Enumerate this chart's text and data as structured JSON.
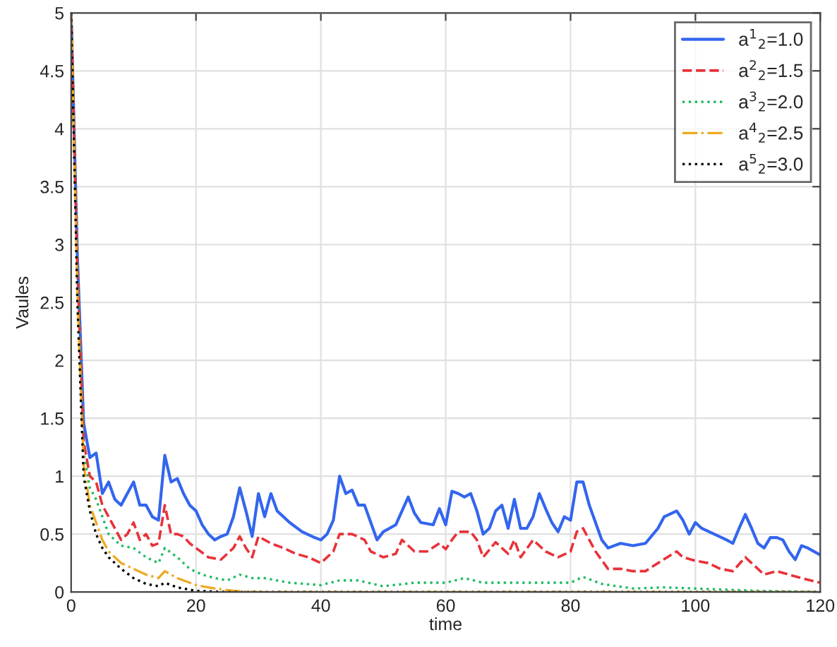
{
  "chart_data": {
    "type": "line",
    "xlabel": "time",
    "ylabel": "Vaules",
    "xlim": [
      0,
      120
    ],
    "ylim": [
      0,
      5
    ],
    "xticks": [
      0,
      20,
      40,
      60,
      80,
      100,
      120
    ],
    "yticks": [
      0,
      0.5,
      1,
      1.5,
      2,
      2.5,
      3,
      3.5,
      4,
      4.5,
      5
    ],
    "grid": true,
    "legend": "top right",
    "marker": "none",
    "series": [
      {
        "name": "a$^{1}$$_{2}$=1.0",
        "color": "#3366ee",
        "line_style": "solid",
        "x": [
          0,
          1,
          2,
          3,
          4,
          5,
          6,
          7,
          8,
          9,
          10,
          11,
          12,
          13,
          14,
          15,
          16,
          17,
          18,
          19,
          20,
          21,
          22,
          23,
          24,
          25,
          26,
          27,
          28,
          29,
          30,
          31,
          32,
          33,
          35,
          37,
          39,
          40,
          41,
          42,
          43,
          44,
          45,
          46,
          47,
          48,
          49,
          50,
          52,
          53,
          54,
          55,
          56,
          58,
          59,
          60,
          61,
          62,
          63,
          64,
          65,
          66,
          67,
          68,
          69,
          70,
          71,
          72,
          73,
          74,
          75,
          76,
          77,
          78,
          79,
          80,
          81,
          82,
          83,
          84,
          85,
          86,
          88,
          90,
          92,
          94,
          95,
          97,
          98,
          99,
          100,
          101,
          103,
          105,
          106,
          107,
          108,
          109,
          110,
          111,
          112,
          113,
          114,
          115,
          116,
          117,
          118,
          120
        ],
        "values": [
          5,
          2.9,
          1.46,
          1.16,
          1.2,
          0.85,
          0.95,
          0.8,
          0.75,
          0.85,
          0.95,
          0.75,
          0.75,
          0.65,
          0.62,
          1.18,
          0.95,
          0.98,
          0.85,
          0.75,
          0.7,
          0.58,
          0.5,
          0.45,
          0.48,
          0.5,
          0.65,
          0.9,
          0.7,
          0.48,
          0.85,
          0.65,
          0.85,
          0.7,
          0.6,
          0.52,
          0.47,
          0.45,
          0.5,
          0.62,
          1.0,
          0.85,
          0.88,
          0.75,
          0.75,
          0.6,
          0.45,
          0.52,
          0.58,
          0.7,
          0.82,
          0.68,
          0.6,
          0.58,
          0.72,
          0.58,
          0.87,
          0.85,
          0.82,
          0.85,
          0.7,
          0.5,
          0.55,
          0.7,
          0.75,
          0.55,
          0.8,
          0.55,
          0.55,
          0.65,
          0.85,
          0.72,
          0.6,
          0.52,
          0.65,
          0.62,
          0.95,
          0.95,
          0.75,
          0.6,
          0.45,
          0.38,
          0.42,
          0.4,
          0.42,
          0.55,
          0.65,
          0.7,
          0.62,
          0.5,
          0.6,
          0.55,
          0.5,
          0.45,
          0.42,
          0.55,
          0.67,
          0.55,
          0.42,
          0.38,
          0.47,
          0.47,
          0.45,
          0.35,
          0.28,
          0.4,
          0.38,
          0.32
        ]
      },
      {
        "name": "a$^{2}$$_{2}$=1.5",
        "color": "#e8323a",
        "line_style": "dashed",
        "x": [
          0,
          1,
          2,
          3,
          4,
          5,
          6,
          7,
          8,
          9,
          10,
          11,
          12,
          13,
          14,
          15,
          16,
          17,
          18,
          19,
          20,
          22,
          24,
          26,
          27,
          28,
          29,
          30,
          32,
          34,
          36,
          38,
          40,
          42,
          43,
          45,
          47,
          48,
          50,
          52,
          53,
          55,
          57,
          59,
          60,
          61,
          62,
          64,
          65,
          66,
          68,
          70,
          71,
          72,
          74,
          76,
          78,
          80,
          81,
          82,
          84,
          86,
          88,
          90,
          92,
          94,
          97,
          98,
          100,
          102,
          104,
          106,
          108,
          109,
          111,
          113,
          115,
          117,
          120
        ],
        "values": [
          5,
          2.8,
          1.3,
          1.0,
          0.95,
          0.75,
          0.65,
          0.55,
          0.45,
          0.5,
          0.6,
          0.45,
          0.5,
          0.4,
          0.42,
          0.75,
          0.5,
          0.5,
          0.48,
          0.42,
          0.38,
          0.3,
          0.28,
          0.38,
          0.48,
          0.38,
          0.3,
          0.48,
          0.42,
          0.38,
          0.33,
          0.3,
          0.25,
          0.35,
          0.5,
          0.5,
          0.45,
          0.35,
          0.3,
          0.33,
          0.45,
          0.35,
          0.35,
          0.42,
          0.37,
          0.45,
          0.52,
          0.52,
          0.45,
          0.3,
          0.43,
          0.33,
          0.45,
          0.3,
          0.45,
          0.35,
          0.3,
          0.35,
          0.52,
          0.55,
          0.35,
          0.2,
          0.2,
          0.18,
          0.18,
          0.25,
          0.35,
          0.3,
          0.27,
          0.25,
          0.2,
          0.18,
          0.3,
          0.25,
          0.15,
          0.18,
          0.15,
          0.12,
          0.08
        ]
      },
      {
        "name": "a$^{3}$$_{2}$=2.0",
        "color": "#22bb66",
        "line_style": "dotted",
        "x": [
          0,
          1,
          2,
          3,
          4,
          5,
          6,
          8,
          10,
          12,
          14,
          15,
          17,
          19,
          21,
          23,
          25,
          27,
          29,
          31,
          35,
          40,
          43,
          46,
          50,
          55,
          60,
          63,
          66,
          70,
          75,
          80,
          82,
          85,
          90,
          95,
          100,
          110,
          120
        ],
        "values": [
          5,
          2.7,
          1.2,
          0.9,
          0.8,
          0.65,
          0.5,
          0.4,
          0.38,
          0.3,
          0.25,
          0.38,
          0.3,
          0.2,
          0.15,
          0.12,
          0.1,
          0.15,
          0.12,
          0.12,
          0.08,
          0.06,
          0.1,
          0.1,
          0.05,
          0.08,
          0.08,
          0.12,
          0.08,
          0.08,
          0.08,
          0.08,
          0.13,
          0.07,
          0.03,
          0.04,
          0.03,
          0.01,
          0
        ]
      },
      {
        "name": "a$^{4}$$_{2}$=2.5",
        "color": "#eeaa22",
        "line_style": "dashdot",
        "x": [
          0,
          1,
          2,
          3,
          4,
          5,
          6,
          8,
          10,
          12,
          14,
          15,
          17,
          20,
          23,
          26,
          30,
          120
        ],
        "values": [
          5,
          2.6,
          1.1,
          0.75,
          0.6,
          0.45,
          0.35,
          0.25,
          0.2,
          0.15,
          0.12,
          0.18,
          0.12,
          0.06,
          0.03,
          0.01,
          0,
          0
        ]
      },
      {
        "name": "a$^{5}$$_{2}$=3.0",
        "color": "#000000",
        "line_style": "dotted",
        "x": [
          0,
          1,
          2,
          3,
          4,
          5,
          6,
          8,
          10,
          12,
          14,
          15,
          17,
          20,
          25,
          120
        ],
        "values": [
          5,
          2.5,
          1.0,
          0.7,
          0.5,
          0.38,
          0.3,
          0.2,
          0.12,
          0.07,
          0.05,
          0.08,
          0.04,
          0.01,
          0,
          0
        ]
      }
    ]
  }
}
